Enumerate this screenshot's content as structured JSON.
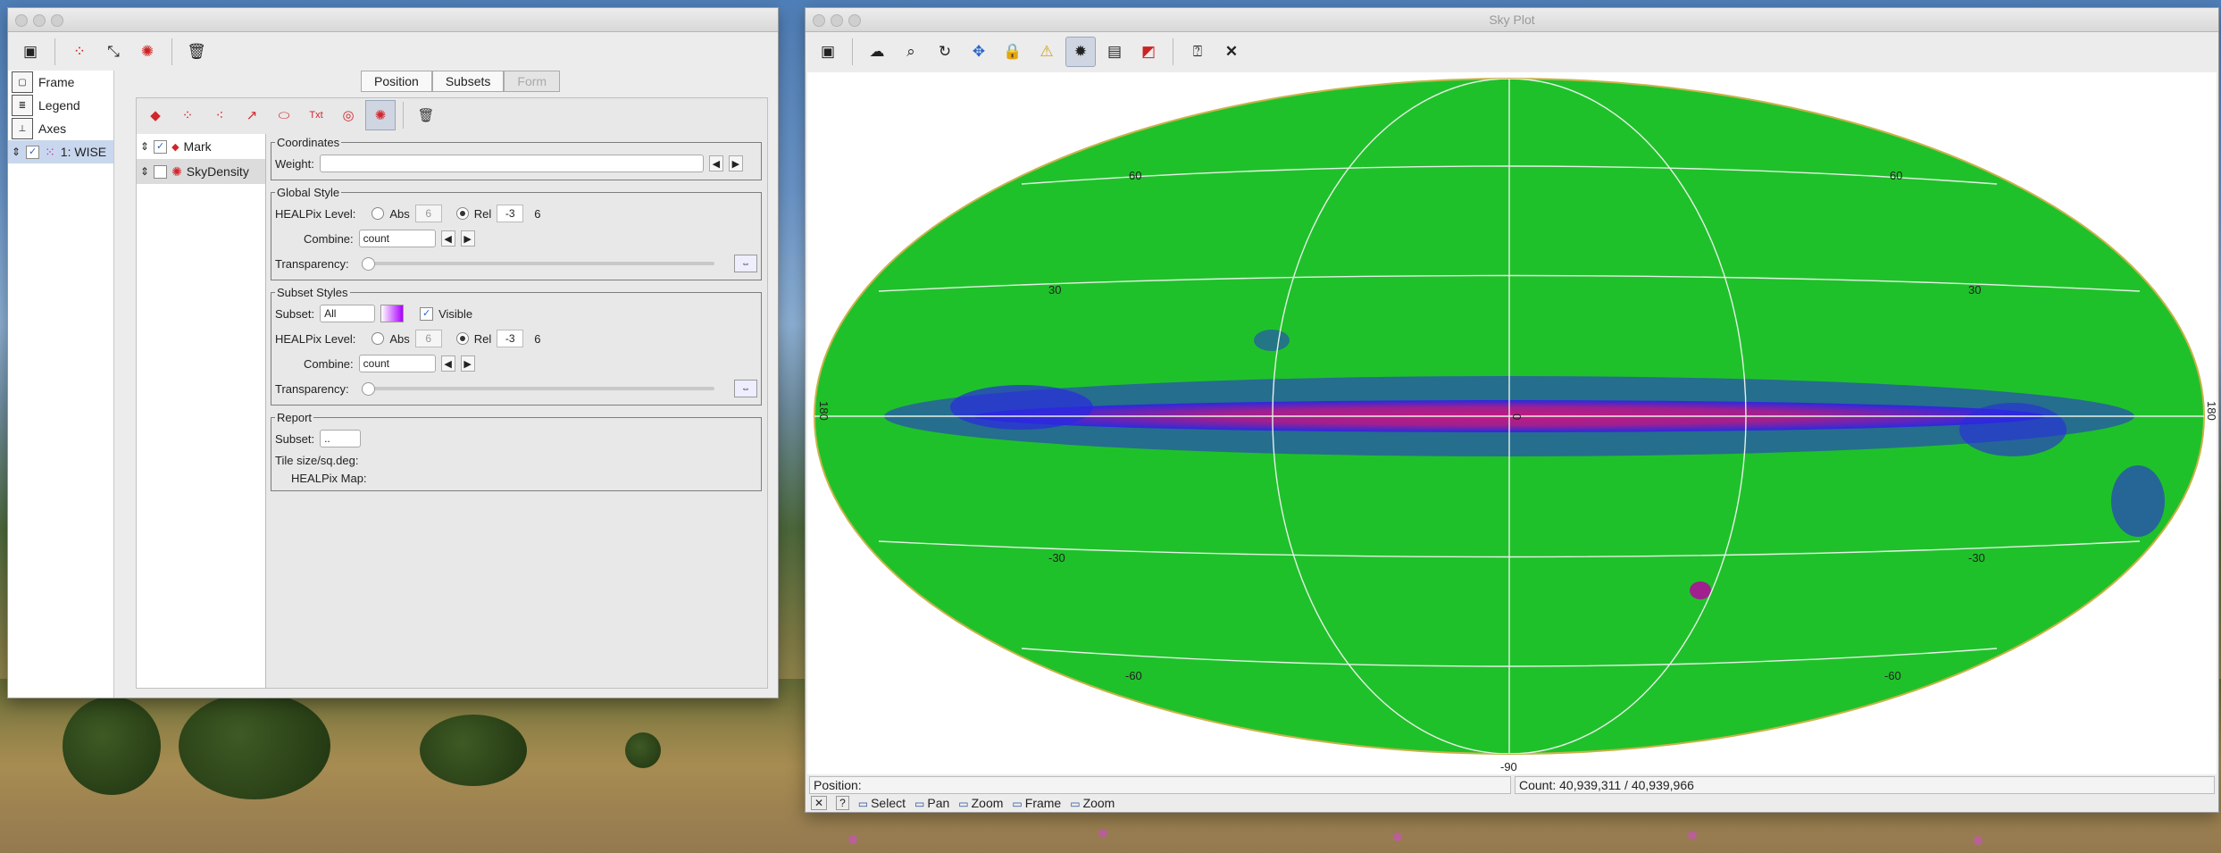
{
  "left_window": {
    "toolbar_icons": [
      "window-icon",
      "add-points-layer-icon",
      "add-pair-layer-icon",
      "add-density-layer-icon",
      "trash-icon"
    ],
    "sidebar": {
      "items": [
        {
          "label": "Frame"
        },
        {
          "label": "Legend"
        },
        {
          "label": "Axes"
        },
        {
          "label": "1: WISE"
        }
      ]
    },
    "tabs": [
      {
        "label": "Position"
      },
      {
        "label": "Subsets"
      },
      {
        "label": "Form"
      }
    ],
    "inner_toolbar_icons": [
      "mark-icon",
      "size-icon",
      "error-icon",
      "vector-icon",
      "ellipse-icon",
      "label-icon",
      "contour-icon",
      "density-icon",
      "trash-icon"
    ],
    "layers": [
      {
        "label": "Mark",
        "checked": true
      },
      {
        "label": "SkyDensity",
        "checked": false
      }
    ],
    "coordinates": {
      "legend": "Coordinates",
      "weight_label": "Weight:",
      "weight_value": ""
    },
    "global_style": {
      "legend": "Global Style",
      "healpix_label": "HEALPix Level:",
      "abs_label": "Abs",
      "abs_value": "6",
      "rel_label": "Rel",
      "rel_value": "-3",
      "level_value": "6",
      "combine_label": "Combine:",
      "combine_value": "count",
      "transparency_label": "Transparency:",
      "transparency_value": 0
    },
    "subset_styles": {
      "legend": "Subset Styles",
      "subset_label": "Subset:",
      "subset_value": "All",
      "visible_label": "Visible",
      "healpix_label": "HEALPix Level:",
      "abs_label": "Abs",
      "abs_value": "6",
      "rel_label": "Rel",
      "rel_value": "-3",
      "level_value": "6",
      "combine_label": "Combine:",
      "combine_value": "count",
      "transparency_label": "Transparency:",
      "transparency_value": 0
    },
    "report": {
      "legend": "Report",
      "subset_label": "Subset:",
      "subset_value": "..",
      "tile_label": "Tile size/sq.deg:",
      "map_label": "HEALPix Map:"
    }
  },
  "right_window": {
    "title": "Sky Plot",
    "toolbar_icons": [
      "window-icon",
      "blob-icon",
      "zoom-region-icon",
      "rotate-icon",
      "pan-icon",
      "lock-icon",
      "lock-aspect-icon",
      "sky-grid-icon",
      "axis-icon",
      "colors-icon",
      "help-icon",
      "close-icon"
    ],
    "graticule_labels": {
      "lat_north": [
        "60",
        "60",
        "30",
        "30"
      ],
      "lat_south": [
        "-30",
        "-30",
        "-60",
        "-60"
      ],
      "bottom": "-90",
      "center": "0",
      "lon_left": "180",
      "lon_right": "180"
    },
    "status": {
      "position_label": "Position:",
      "count_label": "Count: 40,939,311 / 40,939,966"
    },
    "hints": [
      {
        "key": "✕",
        "label": ""
      },
      {
        "key": "?",
        "label": ""
      },
      {
        "key": "▭",
        "label": "Select"
      },
      {
        "key": "▭",
        "label": "Pan"
      },
      {
        "key": "▭",
        "label": "Zoom"
      },
      {
        "key": "▭",
        "label": "Frame"
      },
      {
        "key": "▭",
        "label": "Zoom"
      }
    ]
  },
  "colors": {
    "sky_green": "#1fc12a",
    "density_blue": "#2a2ae0",
    "density_magenta": "#c21a82",
    "grid_line": "#e6f0e6"
  }
}
